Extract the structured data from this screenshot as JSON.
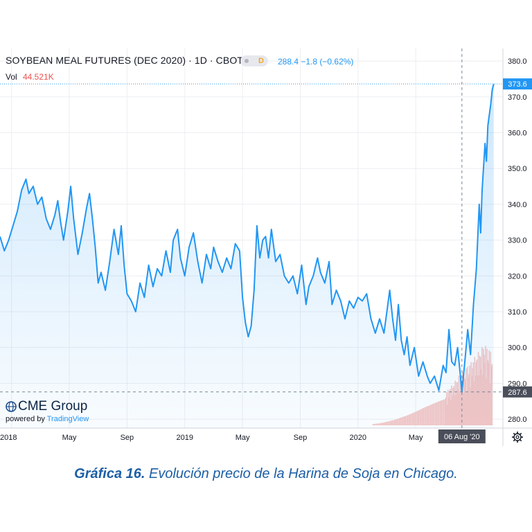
{
  "header": {
    "title": "SOYBEAN MEAL FUTURES (DEC 2020) · 1D · CBOT",
    "badge": "D",
    "quote": "288.4  −1.8 (−0.62%)",
    "vol_label": "Vol",
    "vol_value": "44.521K"
  },
  "branding": {
    "logo_text": "CME Group",
    "powered_by": "powered by",
    "tradingview": "TradingView"
  },
  "caption": {
    "bold": "Gráfica 16.",
    "text": "Evolución precio de la Harina de Soja en Chicago."
  },
  "colors": {
    "price_line": "#2196f3",
    "area_fill": "#2196f3",
    "volume_bar": "#f5c6c4",
    "grid": "#eceef2",
    "accent_label": "#2196f3",
    "crosshair_label": "#4a4e5a"
  },
  "chart_data": {
    "type": "area",
    "ylim": [
      277.5,
      383.5
    ],
    "y_ticks": [
      380.0,
      370.0,
      360.0,
      350.0,
      340.0,
      330.0,
      320.0,
      310.0,
      300.0,
      290.0,
      280.0
    ],
    "y_tick_labels": [
      "380.0",
      "370.0",
      "360.0",
      "350.0",
      "340.0",
      "330.0",
      "320.0",
      "310.0",
      "300.0",
      "290.0",
      "280.0"
    ],
    "x_tick_labels": [
      "2018",
      "May",
      "Sep",
      "2019",
      "May",
      "Sep",
      "2020",
      "May"
    ],
    "x_tick_positions": [
      0,
      4,
      8,
      12,
      16,
      20,
      24,
      28
    ],
    "x_range": [
      -0.8,
      33.8
    ],
    "last_price_label": "373.6",
    "last_price": 373.6,
    "crosshair_price_label": "287.6",
    "crosshair_price": 287.6,
    "crosshair_date_label": "06 Aug '20",
    "crosshair_month": 31.2,
    "price_series": {
      "name": "",
      "points": [
        [
          -0.8,
          331
        ],
        [
          -0.5,
          327
        ],
        [
          -0.2,
          330
        ],
        [
          0.1,
          334
        ],
        [
          0.4,
          338
        ],
        [
          0.7,
          344
        ],
        [
          1.0,
          347
        ],
        [
          1.2,
          343
        ],
        [
          1.5,
          345
        ],
        [
          1.8,
          340
        ],
        [
          2.1,
          342
        ],
        [
          2.4,
          336
        ],
        [
          2.7,
          333
        ],
        [
          3.0,
          337
        ],
        [
          3.2,
          341
        ],
        [
          3.4,
          335
        ],
        [
          3.6,
          330
        ],
        [
          3.9,
          338
        ],
        [
          4.1,
          345
        ],
        [
          4.3,
          336
        ],
        [
          4.6,
          326
        ],
        [
          4.9,
          332
        ],
        [
          5.2,
          339
        ],
        [
          5.4,
          343
        ],
        [
          5.6,
          336
        ],
        [
          5.8,
          328
        ],
        [
          6.0,
          318
        ],
        [
          6.2,
          321
        ],
        [
          6.5,
          316
        ],
        [
          6.8,
          324
        ],
        [
          7.1,
          333
        ],
        [
          7.4,
          326
        ],
        [
          7.6,
          334
        ],
        [
          7.8,
          323
        ],
        [
          8.0,
          315
        ],
        [
          8.3,
          313
        ],
        [
          8.6,
          310
        ],
        [
          8.9,
          318
        ],
        [
          9.2,
          314
        ],
        [
          9.5,
          323
        ],
        [
          9.8,
          317
        ],
        [
          10.1,
          322
        ],
        [
          10.4,
          320
        ],
        [
          10.7,
          327
        ],
        [
          11.0,
          321
        ],
        [
          11.2,
          330
        ],
        [
          11.5,
          333
        ],
        [
          11.7,
          325
        ],
        [
          12.0,
          320
        ],
        [
          12.3,
          328
        ],
        [
          12.6,
          332
        ],
        [
          12.9,
          324
        ],
        [
          13.2,
          318
        ],
        [
          13.5,
          326
        ],
        [
          13.8,
          322
        ],
        [
          14.0,
          328
        ],
        [
          14.3,
          324
        ],
        [
          14.6,
          321
        ],
        [
          14.9,
          325
        ],
        [
          15.2,
          322
        ],
        [
          15.5,
          329
        ],
        [
          15.8,
          327
        ],
        [
          16.0,
          314
        ],
        [
          16.2,
          307
        ],
        [
          16.4,
          303
        ],
        [
          16.6,
          306
        ],
        [
          16.8,
          316
        ],
        [
          17.0,
          334
        ],
        [
          17.2,
          325
        ],
        [
          17.4,
          330
        ],
        [
          17.6,
          331
        ],
        [
          17.8,
          325
        ],
        [
          18.0,
          333
        ],
        [
          18.3,
          324
        ],
        [
          18.6,
          326
        ],
        [
          18.9,
          320
        ],
        [
          19.2,
          318
        ],
        [
          19.5,
          320
        ],
        [
          19.8,
          315
        ],
        [
          20.1,
          323
        ],
        [
          20.4,
          312
        ],
        [
          20.6,
          317
        ],
        [
          20.9,
          320
        ],
        [
          21.2,
          325
        ],
        [
          21.4,
          321
        ],
        [
          21.7,
          318
        ],
        [
          22.0,
          324
        ],
        [
          22.2,
          312
        ],
        [
          22.5,
          316
        ],
        [
          22.8,
          313
        ],
        [
          23.1,
          308
        ],
        [
          23.4,
          313
        ],
        [
          23.7,
          311
        ],
        [
          24.0,
          314
        ],
        [
          24.3,
          313
        ],
        [
          24.6,
          315
        ],
        [
          24.9,
          308
        ],
        [
          25.2,
          304
        ],
        [
          25.5,
          308
        ],
        [
          25.8,
          304
        ],
        [
          26.0,
          310
        ],
        [
          26.2,
          316
        ],
        [
          26.4,
          308
        ],
        [
          26.6,
          302
        ],
        [
          26.8,
          312
        ],
        [
          27.0,
          302
        ],
        [
          27.2,
          298
        ],
        [
          27.4,
          303
        ],
        [
          27.6,
          295
        ],
        [
          27.9,
          300
        ],
        [
          28.2,
          292
        ],
        [
          28.5,
          296
        ],
        [
          28.8,
          292
        ],
        [
          29.0,
          290
        ],
        [
          29.3,
          292
        ],
        [
          29.6,
          288
        ],
        [
          29.9,
          295
        ],
        [
          30.1,
          293
        ],
        [
          30.3,
          305
        ],
        [
          30.5,
          296
        ],
        [
          30.7,
          295
        ],
        [
          30.9,
          300
        ],
        [
          31.1,
          292
        ],
        [
          31.2,
          287.6
        ],
        [
          31.4,
          296
        ],
        [
          31.6,
          305
        ],
        [
          31.8,
          298
        ],
        [
          32.0,
          312
        ],
        [
          32.2,
          322
        ],
        [
          32.4,
          340
        ],
        [
          32.5,
          332
        ],
        [
          32.6,
          344
        ],
        [
          32.8,
          357
        ],
        [
          32.9,
          352
        ],
        [
          33.0,
          362
        ],
        [
          33.2,
          368
        ],
        [
          33.3,
          372
        ],
        [
          33.4,
          373.6
        ]
      ]
    },
    "volume_series": {
      "name": "",
      "points": [
        [
          25.0,
          0.02
        ],
        [
          25.5,
          0.03
        ],
        [
          26.0,
          0.05
        ],
        [
          26.5,
          0.07
        ],
        [
          27.0,
          0.1
        ],
        [
          27.5,
          0.13
        ],
        [
          28.0,
          0.17
        ],
        [
          28.5,
          0.22
        ],
        [
          29.0,
          0.27
        ],
        [
          29.5,
          0.33
        ],
        [
          30.0,
          0.4
        ],
        [
          30.3,
          0.46
        ],
        [
          30.6,
          0.52
        ],
        [
          30.9,
          0.6
        ],
        [
          31.2,
          0.66
        ],
        [
          31.5,
          0.72
        ],
        [
          31.8,
          0.78
        ],
        [
          32.1,
          0.85
        ],
        [
          32.4,
          0.92
        ],
        [
          32.7,
          1.0
        ],
        [
          33.0,
          0.95
        ],
        [
          33.3,
          0.88
        ]
      ]
    }
  }
}
